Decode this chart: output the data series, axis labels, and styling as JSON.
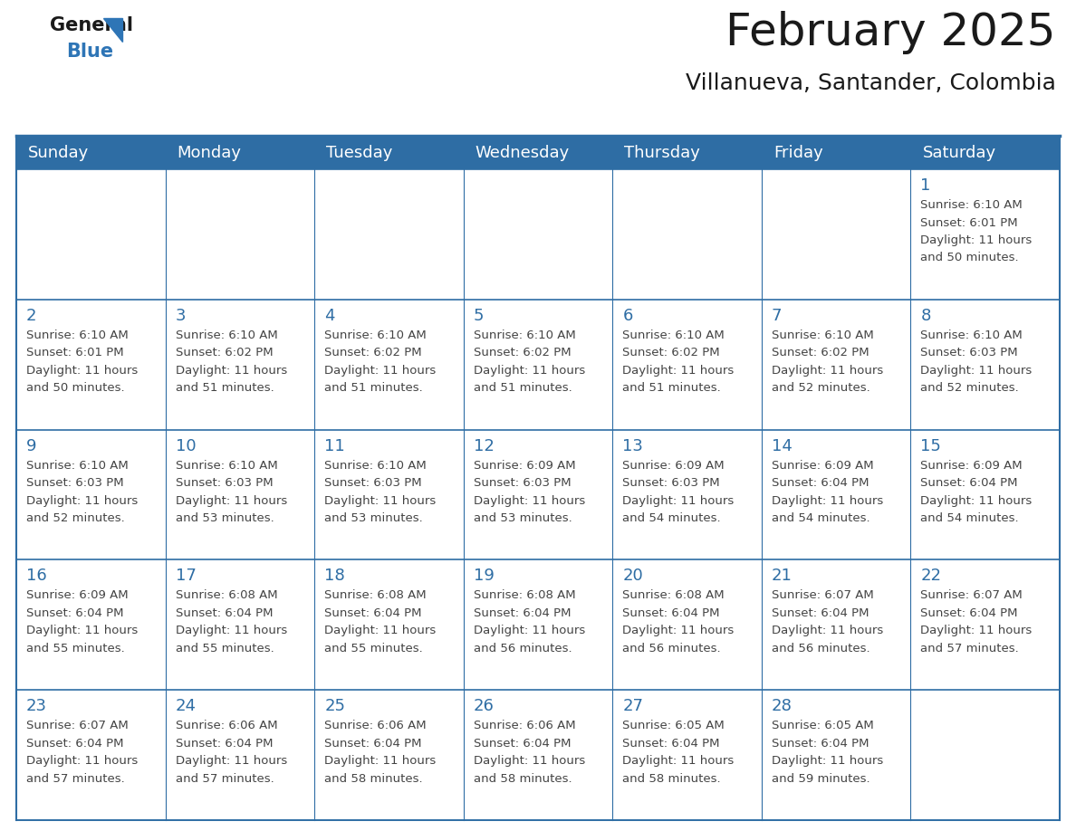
{
  "title": "February 2025",
  "subtitle": "Villanueva, Santander, Colombia",
  "header_bg": "#2E6DA4",
  "header_text_color": "#FFFFFF",
  "cell_bg": "#FFFFFF",
  "day_number_color": "#2E6DA4",
  "info_text_color": "#444444",
  "border_color": "#2E6DA4",
  "days_of_week": [
    "Sunday",
    "Monday",
    "Tuesday",
    "Wednesday",
    "Thursday",
    "Friday",
    "Saturday"
  ],
  "weeks": [
    [
      {
        "day": null,
        "sunrise": null,
        "sunset": null,
        "daylight": null
      },
      {
        "day": null,
        "sunrise": null,
        "sunset": null,
        "daylight": null
      },
      {
        "day": null,
        "sunrise": null,
        "sunset": null,
        "daylight": null
      },
      {
        "day": null,
        "sunrise": null,
        "sunset": null,
        "daylight": null
      },
      {
        "day": null,
        "sunrise": null,
        "sunset": null,
        "daylight": null
      },
      {
        "day": null,
        "sunrise": null,
        "sunset": null,
        "daylight": null
      },
      {
        "day": 1,
        "sunrise": "6:10 AM",
        "sunset": "6:01 PM",
        "daylight_line1": "Daylight: 11 hours",
        "daylight_line2": "and 50 minutes."
      }
    ],
    [
      {
        "day": 2,
        "sunrise": "6:10 AM",
        "sunset": "6:01 PM",
        "daylight_line1": "Daylight: 11 hours",
        "daylight_line2": "and 50 minutes."
      },
      {
        "day": 3,
        "sunrise": "6:10 AM",
        "sunset": "6:02 PM",
        "daylight_line1": "Daylight: 11 hours",
        "daylight_line2": "and 51 minutes."
      },
      {
        "day": 4,
        "sunrise": "6:10 AM",
        "sunset": "6:02 PM",
        "daylight_line1": "Daylight: 11 hours",
        "daylight_line2": "and 51 minutes."
      },
      {
        "day": 5,
        "sunrise": "6:10 AM",
        "sunset": "6:02 PM",
        "daylight_line1": "Daylight: 11 hours",
        "daylight_line2": "and 51 minutes."
      },
      {
        "day": 6,
        "sunrise": "6:10 AM",
        "sunset": "6:02 PM",
        "daylight_line1": "Daylight: 11 hours",
        "daylight_line2": "and 51 minutes."
      },
      {
        "day": 7,
        "sunrise": "6:10 AM",
        "sunset": "6:02 PM",
        "daylight_line1": "Daylight: 11 hours",
        "daylight_line2": "and 52 minutes."
      },
      {
        "day": 8,
        "sunrise": "6:10 AM",
        "sunset": "6:03 PM",
        "daylight_line1": "Daylight: 11 hours",
        "daylight_line2": "and 52 minutes."
      }
    ],
    [
      {
        "day": 9,
        "sunrise": "6:10 AM",
        "sunset": "6:03 PM",
        "daylight_line1": "Daylight: 11 hours",
        "daylight_line2": "and 52 minutes."
      },
      {
        "day": 10,
        "sunrise": "6:10 AM",
        "sunset": "6:03 PM",
        "daylight_line1": "Daylight: 11 hours",
        "daylight_line2": "and 53 minutes."
      },
      {
        "day": 11,
        "sunrise": "6:10 AM",
        "sunset": "6:03 PM",
        "daylight_line1": "Daylight: 11 hours",
        "daylight_line2": "and 53 minutes."
      },
      {
        "day": 12,
        "sunrise": "6:09 AM",
        "sunset": "6:03 PM",
        "daylight_line1": "Daylight: 11 hours",
        "daylight_line2": "and 53 minutes."
      },
      {
        "day": 13,
        "sunrise": "6:09 AM",
        "sunset": "6:03 PM",
        "daylight_line1": "Daylight: 11 hours",
        "daylight_line2": "and 54 minutes."
      },
      {
        "day": 14,
        "sunrise": "6:09 AM",
        "sunset": "6:04 PM",
        "daylight_line1": "Daylight: 11 hours",
        "daylight_line2": "and 54 minutes."
      },
      {
        "day": 15,
        "sunrise": "6:09 AM",
        "sunset": "6:04 PM",
        "daylight_line1": "Daylight: 11 hours",
        "daylight_line2": "and 54 minutes."
      }
    ],
    [
      {
        "day": 16,
        "sunrise": "6:09 AM",
        "sunset": "6:04 PM",
        "daylight_line1": "Daylight: 11 hours",
        "daylight_line2": "and 55 minutes."
      },
      {
        "day": 17,
        "sunrise": "6:08 AM",
        "sunset": "6:04 PM",
        "daylight_line1": "Daylight: 11 hours",
        "daylight_line2": "and 55 minutes."
      },
      {
        "day": 18,
        "sunrise": "6:08 AM",
        "sunset": "6:04 PM",
        "daylight_line1": "Daylight: 11 hours",
        "daylight_line2": "and 55 minutes."
      },
      {
        "day": 19,
        "sunrise": "6:08 AM",
        "sunset": "6:04 PM",
        "daylight_line1": "Daylight: 11 hours",
        "daylight_line2": "and 56 minutes."
      },
      {
        "day": 20,
        "sunrise": "6:08 AM",
        "sunset": "6:04 PM",
        "daylight_line1": "Daylight: 11 hours",
        "daylight_line2": "and 56 minutes."
      },
      {
        "day": 21,
        "sunrise": "6:07 AM",
        "sunset": "6:04 PM",
        "daylight_line1": "Daylight: 11 hours",
        "daylight_line2": "and 56 minutes."
      },
      {
        "day": 22,
        "sunrise": "6:07 AM",
        "sunset": "6:04 PM",
        "daylight_line1": "Daylight: 11 hours",
        "daylight_line2": "and 57 minutes."
      }
    ],
    [
      {
        "day": 23,
        "sunrise": "6:07 AM",
        "sunset": "6:04 PM",
        "daylight_line1": "Daylight: 11 hours",
        "daylight_line2": "and 57 minutes."
      },
      {
        "day": 24,
        "sunrise": "6:06 AM",
        "sunset": "6:04 PM",
        "daylight_line1": "Daylight: 11 hours",
        "daylight_line2": "and 57 minutes."
      },
      {
        "day": 25,
        "sunrise": "6:06 AM",
        "sunset": "6:04 PM",
        "daylight_line1": "Daylight: 11 hours",
        "daylight_line2": "and 58 minutes."
      },
      {
        "day": 26,
        "sunrise": "6:06 AM",
        "sunset": "6:04 PM",
        "daylight_line1": "Daylight: 11 hours",
        "daylight_line2": "and 58 minutes."
      },
      {
        "day": 27,
        "sunrise": "6:05 AM",
        "sunset": "6:04 PM",
        "daylight_line1": "Daylight: 11 hours",
        "daylight_line2": "and 58 minutes."
      },
      {
        "day": 28,
        "sunrise": "6:05 AM",
        "sunset": "6:04 PM",
        "daylight_line1": "Daylight: 11 hours",
        "daylight_line2": "and 59 minutes."
      },
      {
        "day": null,
        "sunrise": null,
        "sunset": null,
        "daylight_line1": null,
        "daylight_line2": null
      }
    ]
  ],
  "logo_general_color": "#1a1a1a",
  "logo_blue_color": "#2E75B6",
  "title_fontsize": 36,
  "subtitle_fontsize": 18,
  "header_fontsize": 13,
  "day_num_fontsize": 13,
  "info_fontsize": 9.5
}
